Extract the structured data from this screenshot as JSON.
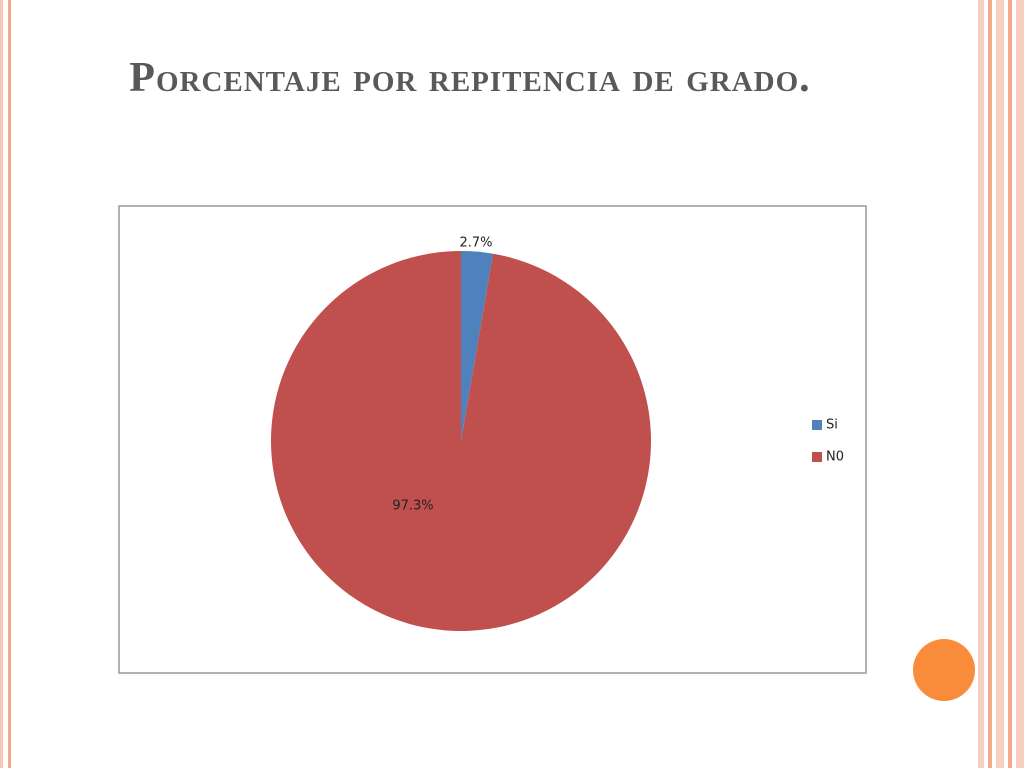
{
  "chart_data": {
    "type": "pie",
    "title": "Porcentaje por repitencia de grado.",
    "categories": [
      "Si",
      "N0"
    ],
    "values": [
      2.7,
      97.3
    ],
    "value_labels": [
      "2.7%",
      "97.3%"
    ],
    "colors": [
      "#4f81bd",
      "#c0504d"
    ],
    "legend": "right"
  }
}
